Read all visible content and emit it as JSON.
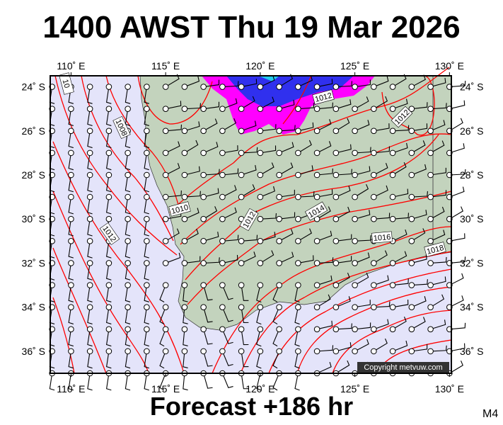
{
  "header": {
    "title": "1400 AWST Thu 19 Mar 2026"
  },
  "footer": {
    "forecast": "Forecast +186 hr",
    "model": "M4",
    "copyright": "Copyright metvuw.com"
  },
  "map": {
    "lon_ticks": [
      "110˚ E",
      "115˚ E",
      "120˚ E",
      "125˚ E",
      "130˚ E"
    ],
    "lat_ticks": [
      "24˚ S",
      "26˚ S",
      "28˚ S",
      "30˚ S",
      "32˚ S",
      "34˚ S",
      "36˚ S"
    ],
    "lon_values": [
      110,
      115,
      120,
      125,
      130
    ],
    "lat_values": [
      24,
      26,
      28,
      30,
      32,
      34,
      36
    ],
    "extent": {
      "lon": [
        108.9,
        130.1
      ],
      "lat": [
        23.5,
        37
      ]
    },
    "contour_labels": [
      "10",
      "1008",
      "1010",
      "1012",
      "1012",
      "1012",
      "1012",
      "1014",
      "1016",
      "1018"
    ],
    "colors": {
      "sea": "#e4e4fa",
      "land": "#c3d3bd",
      "isobar": "#ff0000",
      "rain_light": "#ff00ff",
      "rain_heavy": "#2020ff",
      "barb": "#000000"
    }
  }
}
